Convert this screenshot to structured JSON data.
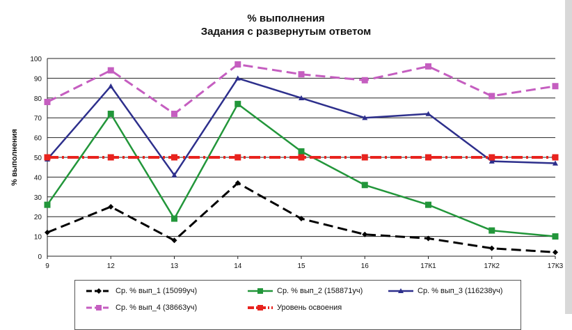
{
  "chart_data": {
    "type": "line",
    "title": "% выполнения",
    "subtitle": "Задания с развернутым ответом",
    "ylabel": "% выполнения",
    "xlabel": "",
    "ylim": [
      0,
      100
    ],
    "yticks": [
      0,
      10,
      20,
      30,
      40,
      50,
      60,
      70,
      80,
      90,
      100
    ],
    "categories": [
      "9",
      "12",
      "13",
      "14",
      "15",
      "16",
      "17К1",
      "17К2",
      "17К3"
    ],
    "grid": true,
    "legend_position": "bottom",
    "series": [
      {
        "name": "Ср. % вып_1 (15099уч)",
        "values": [
          12,
          25,
          8,
          37,
          19,
          11,
          9,
          4,
          2
        ],
        "color": "#000000",
        "style": "dashed",
        "marker": "diamond"
      },
      {
        "name": "Ср. % вып_2 (158871уч)",
        "values": [
          26,
          72,
          19,
          77,
          53,
          36,
          26,
          13,
          10
        ],
        "color": "#22963a",
        "style": "solid",
        "marker": "square"
      },
      {
        "name": "Ср. % вып_3 (116238уч)",
        "values": [
          49,
          86,
          41,
          90,
          80,
          70,
          72,
          48,
          47
        ],
        "color": "#2d2f8c",
        "style": "solid",
        "marker": "triangle"
      },
      {
        "name": "Ср. % вып_4 (38663уч)",
        "values": [
          78,
          94,
          72,
          97,
          92,
          89,
          96,
          81,
          86
        ],
        "color": "#c55ec0",
        "style": "dashed",
        "marker": "square"
      },
      {
        "name": "Уровень освоения",
        "values": [
          50,
          50,
          50,
          50,
          50,
          50,
          50,
          50,
          50
        ],
        "color": "#e8231e",
        "style": "dashdot",
        "marker": "square"
      }
    ]
  }
}
